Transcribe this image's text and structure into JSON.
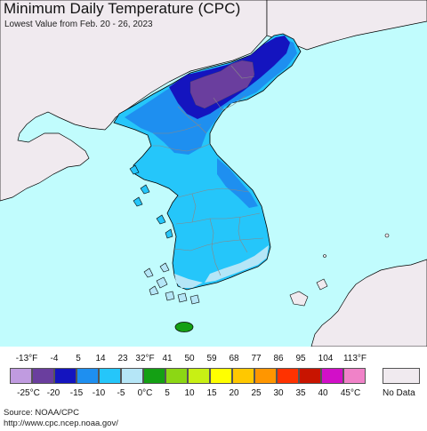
{
  "title": "Minimum Daily Temperature (CPC)",
  "subtitle": "Lowest Value from Feb. 20 - 26, 2023",
  "colors": {
    "ocean": "#c1fcfd",
    "no_data_land": "#f0eaef",
    "coast": "#000000",
    "border": "#888888"
  },
  "legend": {
    "fahrenheit_ticks": [
      "-13°F",
      "-4",
      "5",
      "14",
      "23",
      "32°F",
      "41",
      "50",
      "59",
      "68",
      "77",
      "86",
      "95",
      "104",
      "113°F"
    ],
    "celsius_ticks": [
      "-25°C",
      "-20",
      "-15",
      "-10",
      "-5",
      "0°C",
      "5",
      "10",
      "15",
      "20",
      "25",
      "30",
      "35",
      "40",
      "45°C"
    ],
    "swatches": [
      "#c09be0",
      "#6a3e9e",
      "#1414bf",
      "#1e8ff0",
      "#25c6fa",
      "#b5e6f7",
      "#14a014",
      "#8cd714",
      "#c8f014",
      "#ffff00",
      "#ffc800",
      "#ff9600",
      "#ff3200",
      "#c81400",
      "#d20fc8",
      "#f082c8"
    ],
    "no_data_label": "No Data"
  },
  "source": {
    "line1": "Source: NOAA/CPC",
    "line2": "http://www.cpc.ncep.noaa.gov/"
  }
}
